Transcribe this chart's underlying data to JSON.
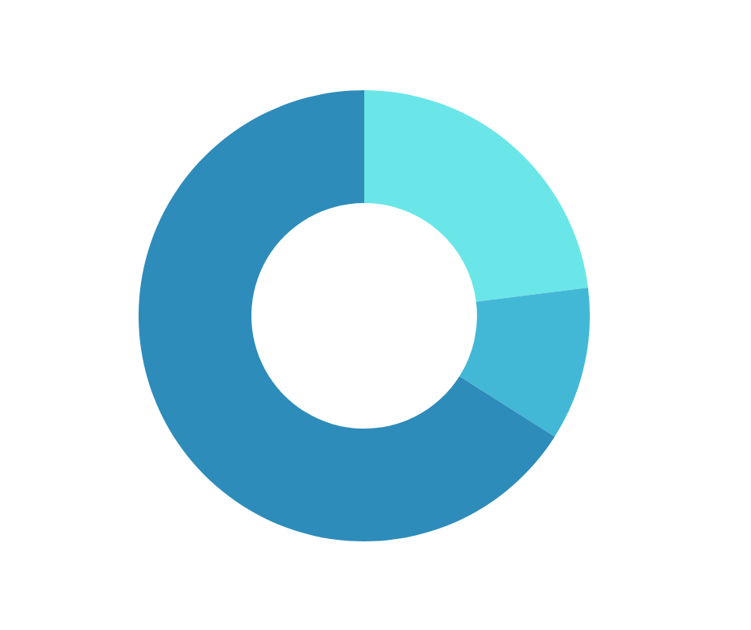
{
  "chart_data": {
    "type": "donut",
    "categories": [
      null,
      null,
      null
    ],
    "values": [
      23,
      11,
      66
    ],
    "colors": [
      "#6ae6e9",
      "#43b8d6",
      "#2d8cba"
    ]
  }
}
